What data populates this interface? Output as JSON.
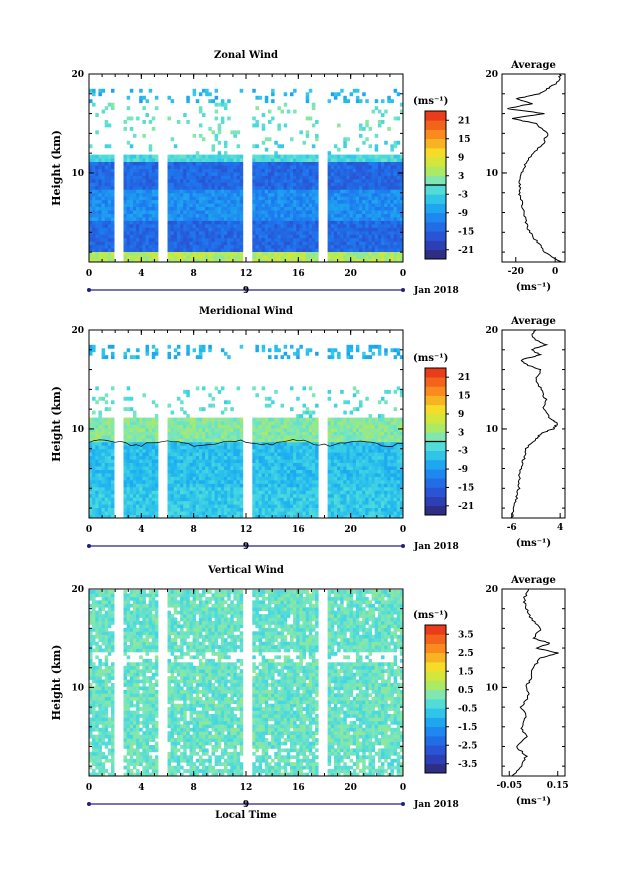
{
  "chart_data": [
    {
      "type": "heatmap",
      "title": "Zonal Wind",
      "ylabel": "Height (km)",
      "ylim": [
        1,
        20
      ],
      "y_ticks": [
        "20",
        "10"
      ],
      "x_ticks": [
        "0",
        "4",
        "8",
        "12",
        "16",
        "20",
        "0"
      ],
      "xlim": [
        0,
        24
      ],
      "date_label": "9",
      "month_label": "Jan 2018",
      "colorbar": {
        "unit": "(ms⁻¹)",
        "min": -24,
        "max": 24,
        "tick_values": [
          21,
          15,
          9,
          3,
          -3,
          -9,
          -15,
          -21
        ],
        "tick_labels": [
          "21",
          "15",
          "9",
          "3",
          "-3",
          "-9",
          "-15",
          "-21"
        ],
        "zero_line": 0
      },
      "data_gaps_hours": [
        [
          2.1,
          2.6
        ],
        [
          5.4,
          6.0
        ],
        [
          11.8,
          12.4
        ],
        [
          17.6,
          18.2
        ]
      ],
      "field": {
        "description_levels": [
          {
            "h_min": 1,
            "h_max": 2,
            "value": 0
          },
          {
            "h_min": 2,
            "h_max": 5,
            "value": -14
          },
          {
            "h_min": 5,
            "h_max": 8,
            "value": -10
          },
          {
            "h_min": 8,
            "h_max": 11,
            "value": -14
          },
          {
            "h_min": 11,
            "h_max": 13,
            "value": -2
          },
          {
            "h_min": 13,
            "h_max": 17,
            "value": 0
          },
          {
            "h_min": 17,
            "h_max": 18.5,
            "value": -6
          }
        ]
      },
      "average_profile": {
        "title": "Average",
        "xlabel": "(ms⁻¹)",
        "xlim": [
          -27,
          5
        ],
        "x_ticks": [
          -20,
          0
        ],
        "x_tick_labels": [
          "-20",
          "0"
        ],
        "y_ticks": [
          "20",
          "10"
        ],
        "height": [
          1,
          2,
          3,
          4,
          5,
          6,
          7,
          8,
          9,
          10,
          11,
          12,
          13,
          14,
          15,
          15.5,
          16,
          16.5,
          17,
          17.5,
          18,
          18.5,
          19,
          19.5,
          20
        ],
        "value": [
          3,
          -5,
          -9,
          -13,
          -15,
          -16,
          -17,
          -18,
          -18,
          -17,
          -15,
          -11,
          -6,
          -4,
          -10,
          -22,
          -6,
          -24,
          -12,
          -20,
          -8,
          -4,
          0,
          3,
          2
        ]
      }
    },
    {
      "type": "heatmap",
      "title": "Meridional Wind",
      "ylabel": "Height (km)",
      "ylim": [
        1,
        20
      ],
      "y_ticks": [
        "20",
        "10"
      ],
      "x_ticks": [
        "0",
        "4",
        "8",
        "12",
        "16",
        "20",
        "0"
      ],
      "xlim": [
        0,
        24
      ],
      "date_label": "9",
      "month_label": "Jan 2018",
      "colorbar": {
        "unit": "(ms⁻¹)",
        "min": -24,
        "max": 24,
        "tick_values": [
          21,
          15,
          9,
          3,
          -3,
          -9,
          -15,
          -21
        ],
        "tick_labels": [
          "21",
          "15",
          "9",
          "3",
          "-3",
          "-9",
          "-15",
          "-21"
        ],
        "zero_line": 0
      },
      "data_gaps_hours": [
        [
          2.1,
          2.6
        ],
        [
          5.4,
          6.0
        ],
        [
          11.8,
          12.4
        ],
        [
          17.6,
          18.2
        ]
      ],
      "field": {
        "description_levels": [
          {
            "h_min": 1,
            "h_max": 4,
            "value": -4
          },
          {
            "h_min": 4,
            "h_max": 8.5,
            "value": -5
          },
          {
            "h_min": 8.5,
            "h_max": 11,
            "value": 2
          },
          {
            "h_min": 11,
            "h_max": 14,
            "value": -1
          },
          {
            "h_min": 17,
            "h_max": 18.5,
            "value": -6
          }
        ]
      },
      "average_profile": {
        "title": "Average",
        "xlabel": "(ms⁻¹)",
        "xlim": [
          -8,
          5
        ],
        "x_ticks": [
          -6,
          4
        ],
        "x_tick_labels": [
          "-6",
          "4"
        ],
        "y_ticks": [
          "20",
          "10"
        ],
        "height": [
          1,
          2,
          3,
          4,
          5,
          6,
          7,
          8,
          9,
          9.5,
          10,
          10.5,
          11,
          12,
          13,
          14,
          15,
          16,
          16.5,
          17,
          17.5,
          18,
          18.5,
          19,
          19.5,
          20
        ],
        "value": [
          -6,
          -5.5,
          -5,
          -4.5,
          -4.5,
          -4,
          -3.5,
          -3,
          -1,
          0,
          2.5,
          3.5,
          2,
          0.5,
          1,
          0,
          -1,
          0,
          -3,
          -4,
          0,
          -2,
          1,
          -1,
          -2,
          -1
        ]
      }
    },
    {
      "type": "heatmap",
      "title": "Vertical Wind",
      "ylabel": "Height (km)",
      "ylim": [
        1,
        20
      ],
      "y_ticks": [
        "20",
        "10"
      ],
      "x_ticks": [
        "0",
        "4",
        "8",
        "12",
        "16",
        "20",
        "0"
      ],
      "xlim": [
        0,
        24
      ],
      "date_label": "9",
      "month_label": "Jan 2018",
      "xlabel": "Local Time",
      "colorbar": {
        "unit": "(ms⁻¹)",
        "min": -4,
        "max": 4,
        "tick_values": [
          3.5,
          2.5,
          1.5,
          0.5,
          -0.5,
          -1.5,
          -2.5,
          -3.5
        ],
        "tick_labels": [
          "3.5",
          "2.5",
          "1.5",
          "0.5",
          "-0.5",
          "-1.5",
          "-2.5",
          "-3.5"
        ]
      },
      "data_gaps_hours": [
        [
          2.1,
          2.6
        ],
        [
          5.4,
          6.0
        ],
        [
          11.8,
          12.4
        ],
        [
          17.6,
          18.2
        ]
      ],
      "field": {
        "description_levels": [
          {
            "h_min": 1,
            "h_max": 20,
            "value": 0
          }
        ]
      },
      "average_profile": {
        "title": "Average",
        "xlabel": "(ms⁻¹)",
        "xlim": [
          -0.08,
          0.18
        ],
        "x_ticks": [
          -0.05,
          0.15
        ],
        "x_tick_labels": [
          "-0.05",
          "0.15"
        ],
        "y_ticks": [
          "20",
          "10"
        ],
        "height": [
          1,
          2,
          3,
          4,
          5,
          6,
          7,
          8,
          9,
          10,
          11,
          12,
          13,
          13.5,
          14,
          14.5,
          15,
          16,
          17,
          18,
          19,
          20
        ],
        "value": [
          -0.04,
          0.0,
          0.02,
          -0.02,
          0.02,
          0.0,
          0.02,
          0.0,
          0.03,
          0.02,
          0.04,
          0.05,
          0.08,
          0.15,
          0.06,
          0.12,
          0.05,
          0.08,
          0.04,
          0.02,
          0.01,
          0.03
        ]
      }
    }
  ]
}
